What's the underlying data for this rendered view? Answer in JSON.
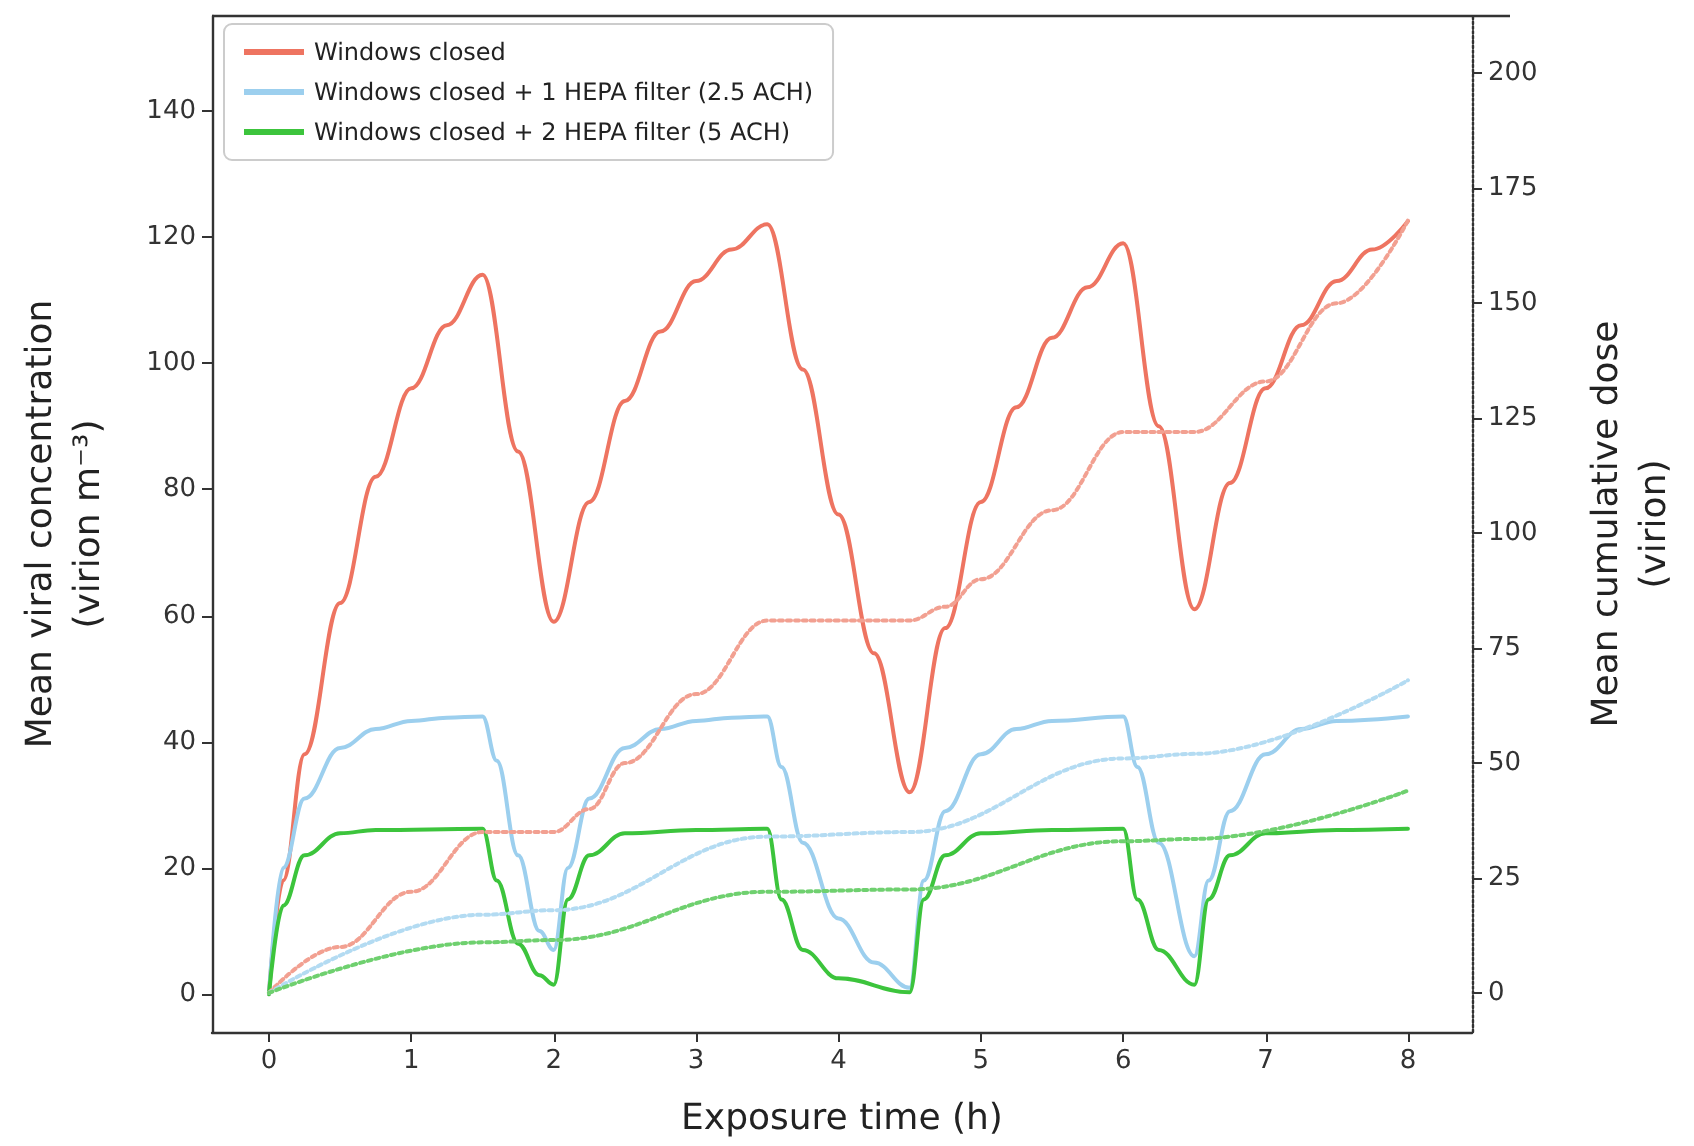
{
  "chart_data": {
    "type": "line",
    "xlabel": "Exposure time (h)",
    "ylabel": "Mean viral concentration\n(virion m⁻³)",
    "y2label": "Mean cumulative dose\n(virion)",
    "xlim": [
      -0.4,
      8.45
    ],
    "xticks": [
      0,
      1,
      2,
      3,
      4,
      5,
      6,
      7,
      8
    ],
    "ylim": [
      -6,
      155
    ],
    "yticks": [
      0,
      20,
      40,
      60,
      80,
      100,
      120,
      140
    ],
    "y2lim": [
      -8.5,
      212.5
    ],
    "y2ticks": [
      0,
      25,
      50,
      75,
      100,
      125,
      150,
      175,
      200
    ],
    "grid": false,
    "legend": "top left",
    "marker": "none",
    "series": [
      {
        "name": "Windows closed",
        "color": "#ee7461",
        "line_style": "solid",
        "x": [
          0,
          0.1,
          0.25,
          0.5,
          0.75,
          1,
          1.25,
          1.5,
          1.75,
          2,
          2.25,
          2.5,
          2.75,
          3,
          3.25,
          3.5,
          3.75,
          4,
          4.25,
          4.5,
          4.75,
          5,
          5.25,
          5.5,
          5.75,
          6,
          6.25,
          6.5,
          6.75,
          7,
          7.25,
          7.5,
          7.75,
          8
        ],
        "values": [
          0,
          18,
          38,
          62,
          82,
          96,
          106,
          114,
          86,
          59,
          78,
          94,
          105,
          113,
          118,
          122,
          99,
          76,
          54,
          32,
          58,
          78,
          93,
          104,
          112,
          119,
          90,
          61,
          81,
          96,
          106,
          113,
          118,
          122.5
        ]
      },
      {
        "name": "Windows closed + 1 HEPA filter (2.5 ACH)",
        "color": "#9ccfee",
        "line_style": "solid",
        "x": [
          0,
          0.1,
          0.25,
          0.5,
          0.75,
          1,
          1.25,
          1.5,
          1.6,
          1.75,
          1.9,
          2,
          2.1,
          2.25,
          2.5,
          2.75,
          3,
          3.25,
          3.5,
          3.6,
          3.75,
          4,
          4.25,
          4.5,
          4.6,
          4.75,
          5,
          5.25,
          5.5,
          6,
          6.1,
          6.25,
          6.5,
          6.6,
          6.75,
          7,
          7.25,
          7.5,
          8
        ],
        "values": [
          0,
          20,
          31,
          39,
          42,
          43.3,
          43.8,
          44,
          37,
          22,
          10,
          7,
          20,
          31,
          39,
          42,
          43.3,
          43.8,
          44,
          36,
          24,
          12,
          5,
          1,
          18,
          29,
          38,
          42,
          43.3,
          44,
          36,
          24,
          6,
          18,
          29,
          38,
          42,
          43.3,
          44
        ]
      },
      {
        "name": "Windows closed + 2 HEPA filter (5 ACH)",
        "color": "#3cc43c",
        "line_style": "solid",
        "x": [
          0,
          0.1,
          0.25,
          0.5,
          0.75,
          1.5,
          1.6,
          1.75,
          1.9,
          2,
          2.1,
          2.25,
          2.5,
          3,
          3.5,
          3.6,
          3.75,
          4,
          4.5,
          4.6,
          4.75,
          5,
          5.5,
          6,
          6.1,
          6.25,
          6.5,
          6.6,
          6.75,
          7,
          7.5,
          8
        ],
        "values": [
          0,
          14,
          22,
          25.5,
          26,
          26.2,
          18,
          8,
          3,
          1.5,
          15,
          22,
          25.5,
          26,
          26.2,
          15,
          7,
          2.5,
          0.3,
          15,
          22,
          25.5,
          26,
          26.2,
          15,
          7,
          1.5,
          15,
          22,
          25.5,
          26,
          26.2
        ]
      },
      {
        "color": "#f2a091",
        "line_style": "dotted",
        "axis": "y2",
        "x": [
          0,
          0.5,
          1,
          1.5,
          2,
          2.25,
          2.5,
          3,
          3.5,
          4,
          4.5,
          4.75,
          5,
          5.5,
          6,
          6.5,
          7,
          7.5,
          8
        ],
        "values": [
          0,
          10,
          22,
          35,
          35,
          40,
          50,
          65,
          81,
          81,
          81,
          84,
          90,
          105,
          122,
          122,
          133,
          150,
          168
        ]
      },
      {
        "color": "#b3dbf2",
        "line_style": "dotted",
        "axis": "y2",
        "x": [
          0,
          1.5,
          2,
          3.5,
          4.5,
          6,
          6.5,
          8
        ],
        "values": [
          0,
          17,
          18,
          34,
          35,
          51,
          52,
          68
        ]
      },
      {
        "color": "#6fd06f",
        "line_style": "dotted",
        "axis": "y2",
        "x": [
          0,
          1.5,
          2,
          3.5,
          4.5,
          6,
          6.5,
          8
        ],
        "values": [
          0,
          11,
          11.5,
          22,
          22.5,
          33,
          33.5,
          44
        ]
      }
    ]
  }
}
